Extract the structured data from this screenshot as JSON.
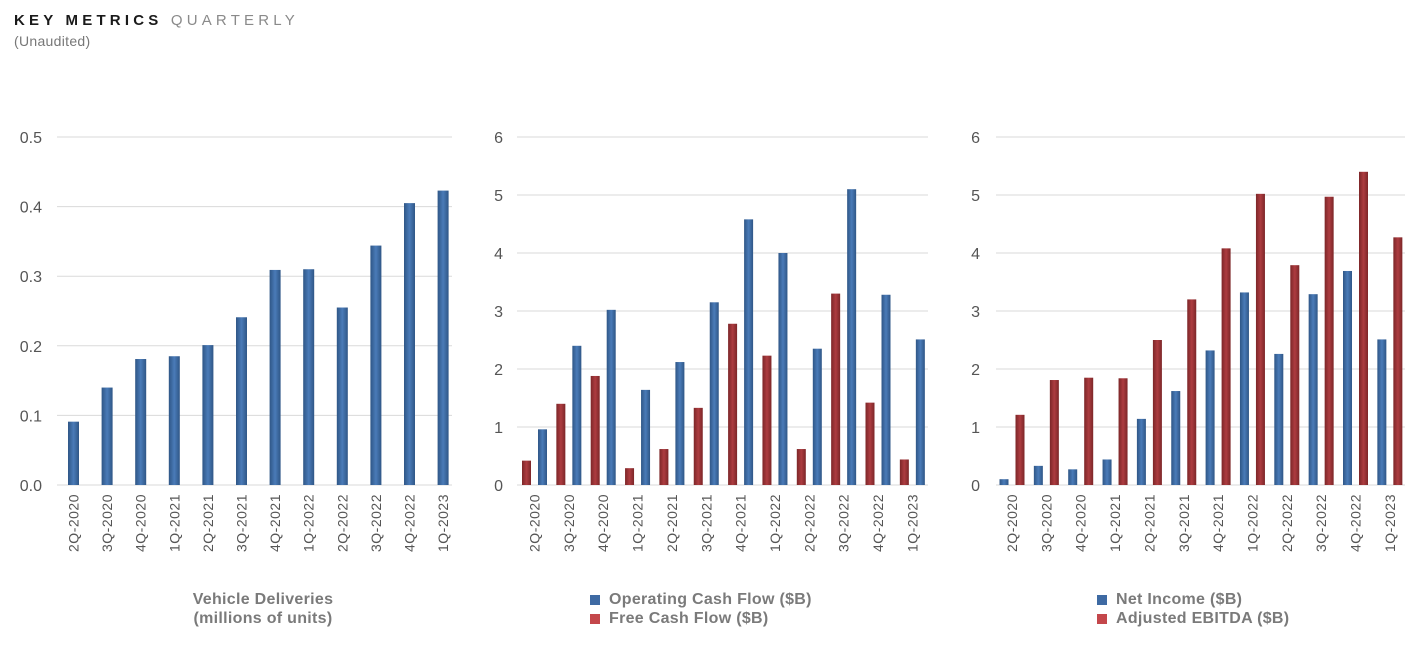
{
  "header": {
    "title_main": "KEY METRICS",
    "title_sub": "QUARTERLY",
    "subtitle": "(Unaudited)"
  },
  "colors": {
    "blue": "#3e6aa3",
    "red": "#9b3236",
    "grid": "#dadada"
  },
  "chart_data": [
    {
      "type": "bar",
      "categories": [
        "2Q-2020",
        "3Q-2020",
        "4Q-2020",
        "1Q-2021",
        "2Q-2021",
        "3Q-2021",
        "4Q-2021",
        "1Q-2022",
        "2Q-2022",
        "3Q-2022",
        "4Q-2022",
        "1Q-2023"
      ],
      "series": [
        {
          "name": "",
          "color": "#3e6aa3",
          "values": [
            0.091,
            0.14,
            0.181,
            0.185,
            0.201,
            0.241,
            0.309,
            0.31,
            0.255,
            0.344,
            0.405,
            0.423
          ]
        }
      ],
      "ylim": [
        0,
        0.5
      ],
      "yticks": [
        "0.0",
        "0.1",
        "0.2",
        "0.3",
        "0.4",
        "0.5"
      ],
      "caption": [
        "Vehicle Deliveries",
        "(millions of units)"
      ],
      "grid": true
    },
    {
      "type": "bar",
      "categories": [
        "2Q-2020",
        "3Q-2020",
        "4Q-2020",
        "1Q-2021",
        "2Q-2021",
        "3Q-2021",
        "4Q-2021",
        "1Q-2022",
        "2Q-2022",
        "3Q-2022",
        "4Q-2022",
        "1Q-2023"
      ],
      "series": [
        {
          "name": "Free Cash Flow ($B)",
          "color": "#9b3236",
          "values": [
            0.42,
            1.4,
            1.88,
            0.29,
            0.62,
            1.33,
            2.78,
            2.23,
            0.62,
            3.3,
            1.42,
            0.44
          ]
        },
        {
          "name": "Operating Cash Flow ($B)",
          "color": "#3e6aa3",
          "values": [
            0.96,
            2.4,
            3.02,
            1.64,
            2.12,
            3.15,
            4.58,
            4.0,
            2.35,
            5.1,
            3.28,
            2.51
          ]
        }
      ],
      "ylim": [
        0,
        6
      ],
      "yticks": [
        "0",
        "1",
        "2",
        "3",
        "4",
        "5",
        "6"
      ],
      "legend": [
        "Operating Cash Flow ($B)",
        "Free Cash Flow ($B)"
      ],
      "grid": true
    },
    {
      "type": "bar",
      "categories": [
        "2Q-2020",
        "3Q-2020",
        "4Q-2020",
        "1Q-2021",
        "2Q-2021",
        "3Q-2021",
        "4Q-2021",
        "1Q-2022",
        "2Q-2022",
        "3Q-2022",
        "4Q-2022",
        "1Q-2023"
      ],
      "series": [
        {
          "name": "Net Income ($B)",
          "color": "#3e6aa3",
          "values": [
            0.1,
            0.33,
            0.27,
            0.44,
            1.14,
            1.62,
            2.32,
            3.32,
            2.26,
            3.29,
            3.69,
            2.51
          ]
        },
        {
          "name": "Adjusted EBITDA ($B)",
          "color": "#9b3236",
          "values": [
            1.21,
            1.81,
            1.85,
            1.84,
            2.5,
            3.2,
            4.08,
            5.02,
            3.79,
            4.97,
            5.4,
            4.27
          ]
        }
      ],
      "ylim": [
        0,
        6
      ],
      "yticks": [
        "0",
        "1",
        "2",
        "3",
        "4",
        "5",
        "6"
      ],
      "legend": [
        "Net Income ($B)",
        "Adjusted EBITDA ($B)"
      ],
      "grid": true
    }
  ]
}
